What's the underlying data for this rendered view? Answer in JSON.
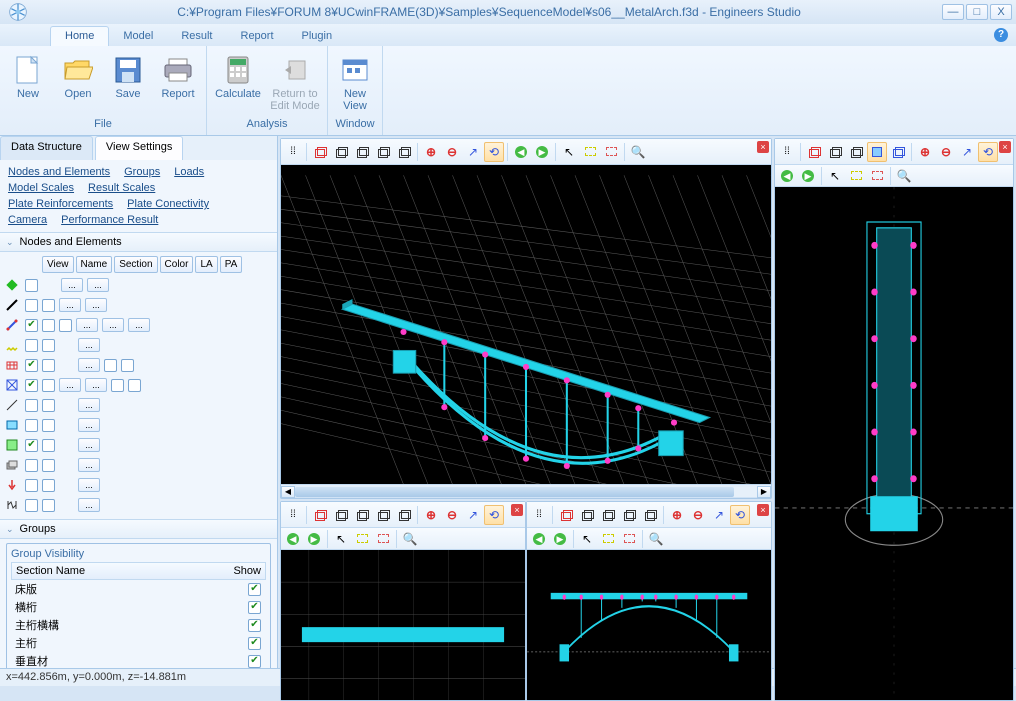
{
  "window": {
    "title": "C:¥Program Files¥FORUM 8¥UCwinFRAME(3D)¥Samples¥SequenceModel¥s06__MetalArch.f3d - Engineers Studio",
    "minimize": "—",
    "maximize": "□",
    "close": "X"
  },
  "tabs": [
    "Home",
    "Model",
    "Result",
    "Report",
    "Plugin"
  ],
  "ribbon": {
    "groups": [
      {
        "label": "File",
        "items": [
          {
            "key": "new",
            "label": "New",
            "icon": "file-new"
          },
          {
            "key": "open",
            "label": "Open",
            "icon": "folder-open"
          },
          {
            "key": "save",
            "label": "Save",
            "icon": "floppy-disk"
          },
          {
            "key": "report",
            "label": "Report",
            "icon": "printer"
          }
        ]
      },
      {
        "label": "Analysis",
        "items": [
          {
            "key": "calculate",
            "label": "Calculate",
            "icon": "calculator"
          },
          {
            "key": "return",
            "label": "Return to\nEdit Mode",
            "icon": "return",
            "disabled": true
          }
        ]
      },
      {
        "label": "Window",
        "items": [
          {
            "key": "newview",
            "label": "New\nView",
            "icon": "new-view"
          }
        ]
      }
    ]
  },
  "leftTabs": [
    "Data Structure",
    "View Settings"
  ],
  "linkRows": [
    [
      "Nodes and Elements",
      "Groups",
      "Loads"
    ],
    [
      "Model Scales",
      "Result Scales"
    ],
    [
      "Plate Reinforcements",
      "Plate Conectivity"
    ],
    [
      "Camera",
      "Performance Result"
    ]
  ],
  "neSection": "Nodes and Elements",
  "neHeaders": [
    "View",
    "Name",
    "Section",
    "Color",
    "LA",
    "PA"
  ],
  "neRows": [
    {
      "icon": "node-green",
      "cells": [
        "cb",
        "blank",
        "dots",
        "dots",
        "blank",
        "blank"
      ]
    },
    {
      "icon": "line-black",
      "cells": [
        "cb",
        "cb",
        "dots",
        "dots",
        "blank",
        "blank"
      ]
    },
    {
      "icon": "line-blue",
      "cells": [
        "chk",
        "cb",
        "cb",
        "dots",
        "dots",
        "dots"
      ]
    },
    {
      "icon": "spring-yellow",
      "cells": [
        "cb",
        "cb",
        "blank",
        "dots",
        "blank",
        "blank"
      ]
    },
    {
      "icon": "mesh-red",
      "cells": [
        "chk",
        "cb",
        "blank",
        "dots",
        "cb",
        "cb"
      ]
    },
    {
      "icon": "frame-blue",
      "cells": [
        "chk",
        "cb",
        "dots",
        "dots",
        "cb",
        "cb"
      ]
    },
    {
      "icon": "line-diag",
      "cells": [
        "cb",
        "cb",
        "blank",
        "dots",
        "blank",
        "blank"
      ]
    },
    {
      "icon": "box-cyan",
      "cells": [
        "cb",
        "cb",
        "blank",
        "dots",
        "blank",
        "blank"
      ]
    },
    {
      "icon": "sheet-green",
      "cells": [
        "chk",
        "cb",
        "blank",
        "dots",
        "blank",
        "blank"
      ]
    },
    {
      "icon": "layers",
      "cells": [
        "cb",
        "cb",
        "blank",
        "dots",
        "blank",
        "blank"
      ]
    },
    {
      "icon": "arrow-down",
      "cells": [
        "cb",
        "cb",
        "blank",
        "dots",
        "blank",
        "blank"
      ]
    },
    {
      "icon": "damper",
      "cells": [
        "cb",
        "cb",
        "blank",
        "dots",
        "blank",
        "blank"
      ]
    }
  ],
  "groupsSection": "Groups",
  "groupVisibility": {
    "title": "Group Visibility",
    "colSection": "Section Name",
    "colShow": "Show",
    "rows": [
      "床版",
      "横桁",
      "主桁横構",
      "主桁",
      "垂直材"
    ]
  },
  "status": "x=442.856m, y=0.000m, z=-14.881m",
  "colors": {
    "bridge": "#23d3e8",
    "nodes": "#ff3cc8",
    "grid": "#5a5a5a",
    "bg": "#000000"
  }
}
